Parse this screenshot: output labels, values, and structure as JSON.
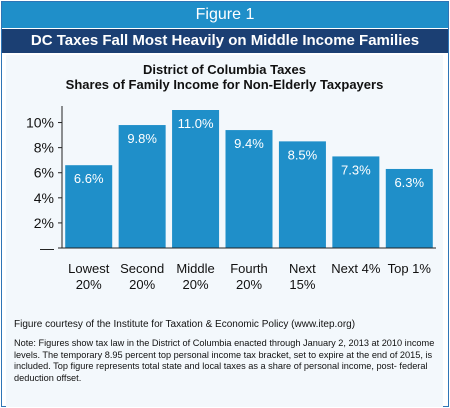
{
  "header": {
    "figure_label": "Figure 1",
    "title": "DC Taxes Fall Most Heavily on Middle Income Families"
  },
  "chart_data": {
    "type": "bar",
    "title": "District of Columbia Taxes",
    "subtitle": "Shares of Family Income for Non-Elderly Taxpayers",
    "categories": [
      [
        "Lowest",
        "20%"
      ],
      [
        "Second",
        "20%"
      ],
      [
        "Middle",
        "20%"
      ],
      [
        "Fourth",
        "20%"
      ],
      [
        "Next",
        "15%"
      ],
      [
        "Next 4%"
      ],
      [
        "Top 1%"
      ]
    ],
    "values": [
      6.6,
      9.8,
      11.0,
      9.4,
      8.5,
      7.3,
      6.3
    ],
    "value_labels": [
      "6.6%",
      "9.8%",
      "11.0%",
      "9.4%",
      "8.5%",
      "7.3%",
      "6.3%"
    ],
    "ylim": [
      0,
      11
    ],
    "yticks": [
      0,
      2,
      4,
      6,
      8,
      10
    ],
    "ytick_labels": [
      "—",
      "2%",
      "4%",
      "6%",
      "8%",
      "10%"
    ],
    "grid": false,
    "colors": {
      "bar": "#1f8fc9",
      "label": "#ffffff"
    }
  },
  "footer": {
    "courtesy": "Figure courtesy of the Institute for Taxation & Economic Policy (www.itep.org)",
    "note": "Note: Figures show tax law in the District of Columbia enacted through January 2, 2013 at 2010 income levels.  The temporary 8.95 percent top personal income tax bracket, set to expire at the end of 2015, is included.  Top figure represents total state and local taxes as a share of personal income, post- federal deduction offset."
  }
}
